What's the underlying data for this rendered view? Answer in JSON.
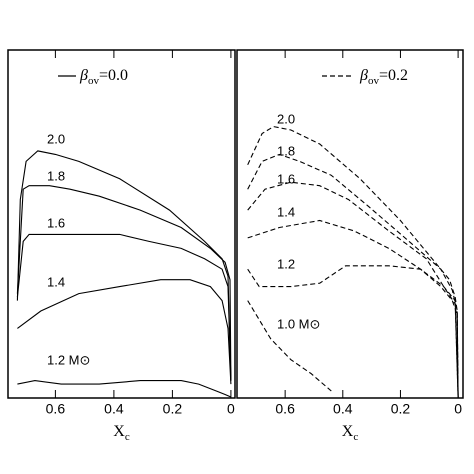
{
  "chart_data": [
    {
      "type": "line",
      "line_style": "solid",
      "color": "#000000",
      "legend": {
        "symbol": "β",
        "subscript": "ov",
        "suffix": "=0.0"
      },
      "xlabel": "X",
      "xlabel_subscript": "c",
      "xlim": [
        0.762,
        -0.014
      ],
      "xticks": [
        0.6,
        0.4,
        0.2,
        0
      ],
      "ylim": [
        0,
        10
      ],
      "series": [
        {
          "name": "2.0",
          "x": [
            0.73,
            0.72,
            0.7,
            0.66,
            0.6,
            0.52,
            0.38,
            0.21,
            0.09,
            0.03,
            0.01,
            0
          ],
          "values": [
            2.8,
            5.7,
            6.8,
            7.1,
            7.0,
            6.8,
            6.3,
            5.4,
            4.5,
            4.0,
            3.5,
            0.5
          ]
        },
        {
          "name": "1.8",
          "x": [
            0.73,
            0.71,
            0.69,
            0.62,
            0.55,
            0.45,
            0.31,
            0.17,
            0.07,
            0.02,
            0.003,
            0
          ],
          "values": [
            3.0,
            6.0,
            6.1,
            6.1,
            6.0,
            5.8,
            5.4,
            4.9,
            4.3,
            3.9,
            3.4,
            0.5
          ]
        },
        {
          "name": "1.6",
          "x": [
            0.73,
            0.71,
            0.69,
            0.58,
            0.38,
            0.28,
            0.17,
            0.09,
            0.03,
            0.01,
            0
          ],
          "values": [
            2.9,
            4.5,
            4.7,
            4.7,
            4.7,
            4.5,
            4.3,
            4.0,
            3.7,
            3.2,
            0.5
          ]
        },
        {
          "name": "1.4",
          "x": [
            0.73,
            0.65,
            0.52,
            0.38,
            0.24,
            0.14,
            0.07,
            0.03,
            0.01,
            0
          ],
          "values": [
            2.0,
            2.5,
            3.0,
            3.2,
            3.4,
            3.4,
            3.2,
            2.8,
            2.0,
            0.4
          ]
        },
        {
          "name": "1.2 M⊙",
          "x": [
            0.73,
            0.67,
            0.58,
            0.45,
            0.31,
            0.17,
            0.11,
            0.05,
            0.02,
            0
          ],
          "values": [
            0.4,
            0.5,
            0.4,
            0.4,
            0.5,
            0.5,
            0.4,
            0.2,
            0.1,
            0.03
          ]
        }
      ]
    },
    {
      "type": "line",
      "line_style": "dashed",
      "color": "#000000",
      "legend": {
        "symbol": "β",
        "subscript": "ov",
        "suffix": "=0.2"
      },
      "xlabel": "X",
      "xlabel_subscript": "c",
      "xlim": [
        0.767,
        -0.017
      ],
      "xticks": [
        0.6,
        0.4,
        0.2,
        0
      ],
      "ylim": [
        0,
        10
      ],
      "series": [
        {
          "name": "2.0",
          "x": [
            0.73,
            0.68,
            0.64,
            0.58,
            0.48,
            0.34,
            0.2,
            0.1,
            0.03,
            0.01,
            0.003,
            0
          ],
          "values": [
            6.7,
            7.6,
            7.8,
            7.7,
            7.3,
            6.3,
            5.1,
            4.1,
            3.4,
            2.9,
            2.5,
            0
          ]
        },
        {
          "name": "1.8",
          "x": [
            0.73,
            0.68,
            0.62,
            0.55,
            0.44,
            0.31,
            0.17,
            0.06,
            0.02,
            0.003,
            0
          ],
          "values": [
            6.0,
            6.8,
            7.0,
            6.8,
            6.4,
            5.5,
            4.5,
            3.7,
            3.1,
            2.5,
            0
          ]
        },
        {
          "name": "1.6",
          "x": [
            0.73,
            0.67,
            0.58,
            0.48,
            0.38,
            0.24,
            0.11,
            0.05,
            0.01,
            0
          ],
          "values": [
            5.4,
            6.0,
            6.2,
            6.1,
            5.7,
            4.8,
            4.0,
            3.2,
            2.7,
            0
          ]
        },
        {
          "name": "1.4",
          "x": [
            0.73,
            0.62,
            0.48,
            0.36,
            0.24,
            0.13,
            0.06,
            0.02,
            0.003,
            0
          ],
          "values": [
            4.6,
            4.9,
            5.1,
            4.8,
            4.3,
            3.7,
            3.2,
            2.8,
            2.4,
            0
          ]
        },
        {
          "name": "1.2",
          "x": [
            0.73,
            0.69,
            0.58,
            0.48,
            0.39,
            0.24,
            0.13,
            0.05,
            0.01,
            0
          ],
          "values": [
            3.7,
            3.2,
            3.2,
            3.3,
            3.8,
            3.8,
            3.7,
            3.2,
            2.8,
            0
          ]
        },
        {
          "name": "1.0 M⊙",
          "x": [
            0.73,
            0.65,
            0.58,
            0.51,
            0.44
          ],
          "values": [
            2.8,
            1.7,
            1.1,
            0.7,
            0.2
          ]
        }
      ]
    }
  ]
}
